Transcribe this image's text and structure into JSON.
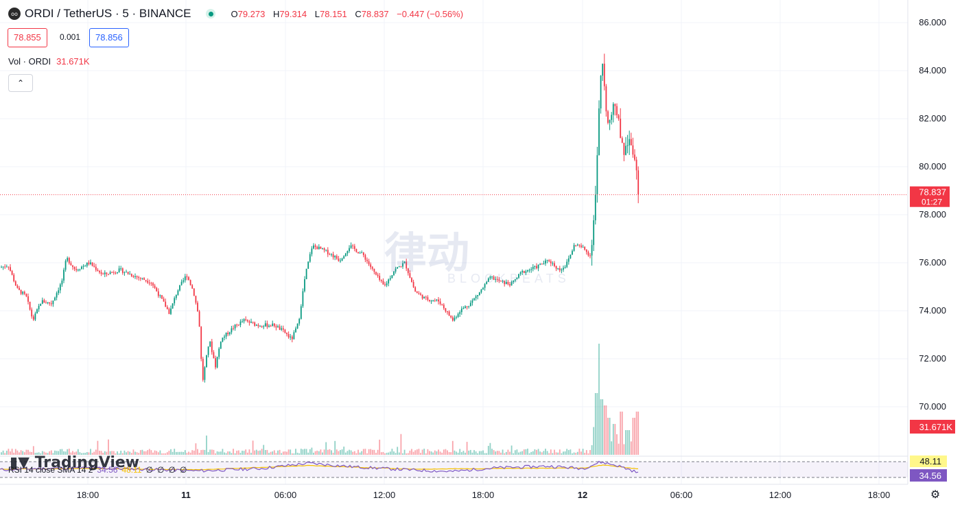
{
  "header": {
    "coin_icon": "ordi-coin-icon",
    "symbol": "ORDI / TetherUS · 5 · BINANCE",
    "status": "market-open-dot",
    "open_key": "O",
    "open": "79.273",
    "high_key": "H",
    "high": "79.314",
    "low_key": "L",
    "low": "78.151",
    "close_key": "C",
    "close": "78.837",
    "change": "−0.447 (−0.56%)"
  },
  "quote": {
    "bid": "78.855",
    "spread": "0.001",
    "ask": "78.856"
  },
  "volume_label": {
    "name": "Vol · ORDI",
    "value": "31.671K"
  },
  "collapse_icon": "chevron-up-icon",
  "rsi_label": {
    "name": "RSI 14 close SMA 14 2",
    "rsi": "34.56",
    "sma": "48.11",
    "empty_values": [
      "∅",
      "∅",
      "∅",
      "∅"
    ]
  },
  "branding": {
    "tradingview": "TradingView",
    "watermark_cn": "律动",
    "watermark_en": "BLOCKBEATS"
  },
  "settings_icon": "gear-icon",
  "chart_data": {
    "type": "candlestick",
    "symbol": "ORDI / TetherUS",
    "interval": "5",
    "exchange": "BINANCE",
    "price_axis": {
      "ticks": [
        "86.000",
        "84.000",
        "82.000",
        "80.000",
        "78.000",
        "76.000",
        "74.000",
        "72.000",
        "70.000"
      ],
      "ylim": [
        69.2,
        86.6
      ]
    },
    "time_axis": {
      "ticks": [
        "18:00",
        "11",
        "06:00",
        "12:00",
        "18:00",
        "12",
        "06:00",
        "12:00",
        "18:00"
      ],
      "bold": [
        "11",
        "12"
      ]
    },
    "last_price": {
      "value": 78.837,
      "label": "78.837",
      "countdown": "01:27"
    },
    "volume_last": "31.671K",
    "price_path": [
      [
        0,
        75.8
      ],
      [
        12,
        75.9
      ],
      [
        25,
        74.9
      ],
      [
        38,
        74.6
      ],
      [
        48,
        73.6
      ],
      [
        60,
        74.4
      ],
      [
        75,
        74.3
      ],
      [
        90,
        75.2
      ],
      [
        97,
        76.2
      ],
      [
        110,
        75.7
      ],
      [
        130,
        76.0
      ],
      [
        150,
        75.5
      ],
      [
        175,
        75.7
      ],
      [
        200,
        75.4
      ],
      [
        220,
        75.2
      ],
      [
        235,
        74.5
      ],
      [
        247,
        73.9
      ],
      [
        258,
        74.8
      ],
      [
        272,
        75.5
      ],
      [
        282,
        74.8
      ],
      [
        290,
        73.7
      ],
      [
        295,
        71.0
      ],
      [
        305,
        72.8
      ],
      [
        314,
        71.7
      ],
      [
        322,
        72.8
      ],
      [
        340,
        73.3
      ],
      [
        355,
        73.6
      ],
      [
        375,
        73.4
      ],
      [
        400,
        73.4
      ],
      [
        415,
        73.1
      ],
      [
        425,
        72.8
      ],
      [
        435,
        73.5
      ],
      [
        445,
        75.5
      ],
      [
        455,
        76.7
      ],
      [
        465,
        76.6
      ],
      [
        480,
        76.4
      ],
      [
        495,
        76.1
      ],
      [
        510,
        76.7
      ],
      [
        530,
        76.3
      ],
      [
        545,
        75.6
      ],
      [
        560,
        75.0
      ],
      [
        575,
        75.7
      ],
      [
        590,
        76.0
      ],
      [
        605,
        74.8
      ],
      [
        620,
        74.5
      ],
      [
        640,
        74.4
      ],
      [
        660,
        73.6
      ],
      [
        670,
        74.0
      ],
      [
        685,
        74.3
      ],
      [
        700,
        74.8
      ],
      [
        715,
        75.4
      ],
      [
        730,
        75.2
      ],
      [
        745,
        75.1
      ],
      [
        760,
        75.6
      ],
      [
        780,
        75.8
      ],
      [
        800,
        76.1
      ],
      [
        815,
        75.7
      ],
      [
        825,
        75.9
      ],
      [
        838,
        76.8
      ],
      [
        850,
        76.6
      ],
      [
        860,
        76.3
      ],
      [
        866,
        77.8
      ],
      [
        870,
        80.0
      ],
      [
        874,
        83.0
      ],
      [
        878,
        84.4
      ],
      [
        882,
        82.7
      ],
      [
        888,
        81.8
      ],
      [
        895,
        82.8
      ],
      [
        903,
        81.6
      ],
      [
        910,
        80.6
      ],
      [
        918,
        81.3
      ],
      [
        924,
        80.5
      ],
      [
        928,
        79.7
      ],
      [
        932,
        78.837
      ]
    ],
    "volume": [
      [
        866,
        4.5
      ],
      [
        870,
        10
      ],
      [
        874,
        18
      ],
      [
        878,
        9
      ],
      [
        882,
        8
      ],
      [
        888,
        6
      ],
      [
        895,
        5
      ],
      [
        905,
        7
      ],
      [
        915,
        4
      ],
      [
        925,
        6
      ],
      [
        930,
        7
      ]
    ],
    "rsi": {
      "name": "RSI 14 close SMA 14 2",
      "levels": [
        70,
        30
      ],
      "rsi_last": 34.56,
      "sma_last": 48.11,
      "rsi_path": [
        [
          0,
          46
        ],
        [
          60,
          50
        ],
        [
          130,
          52
        ],
        [
          200,
          48
        ],
        [
          290,
          42
        ],
        [
          380,
          50
        ],
        [
          450,
          68
        ],
        [
          520,
          55
        ],
        [
          600,
          45
        ],
        [
          660,
          40
        ],
        [
          720,
          52
        ],
        [
          800,
          58
        ],
        [
          850,
          50
        ],
        [
          875,
          72
        ],
        [
          900,
          60
        ],
        [
          932,
          34.56
        ]
      ],
      "sma_path": [
        [
          0,
          48
        ],
        [
          130,
          50
        ],
        [
          290,
          46
        ],
        [
          450,
          60
        ],
        [
          600,
          48
        ],
        [
          720,
          50
        ],
        [
          850,
          52
        ],
        [
          880,
          62
        ],
        [
          932,
          48.11
        ]
      ]
    },
    "colors": {
      "up": "#089981",
      "down": "#f23645",
      "rsi": "#7e57c2",
      "sma": "#f5c000",
      "axis_bg_last": "#f23645",
      "sma_badge": "#fff78a",
      "rsi_badge": "#7e57c2"
    },
    "grid": true,
    "legend_position": "top-left"
  }
}
